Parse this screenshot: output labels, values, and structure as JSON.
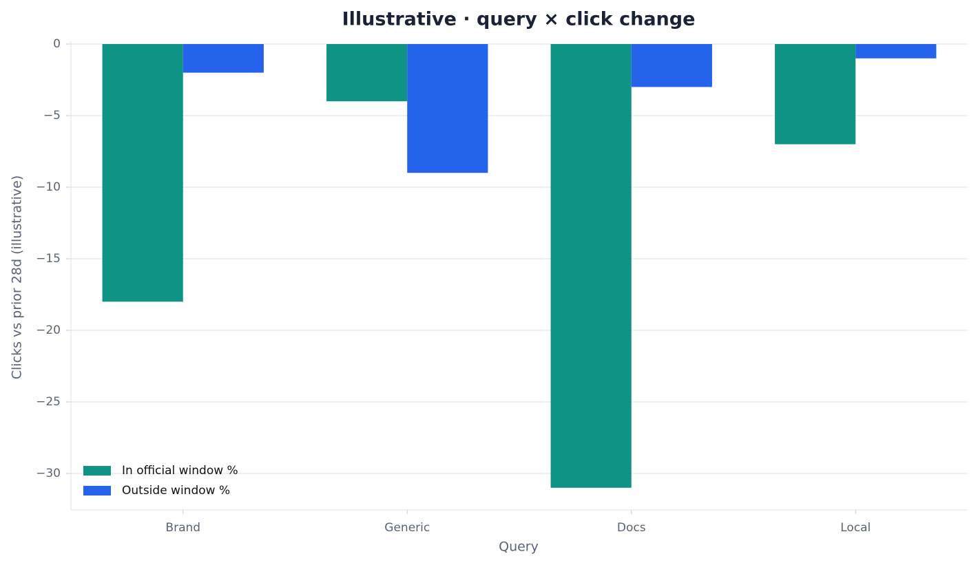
{
  "chart_data": {
    "type": "bar",
    "title": "Illustrative · query × click change",
    "x_label": "Query",
    "y_label": "Clicks vs prior 28d (illustrative)",
    "categories": [
      "Brand",
      "Generic",
      "Docs",
      "Local"
    ],
    "series": [
      {
        "name": "In official window %",
        "color": "#0e9384",
        "values": [
          -18,
          -4,
          -31,
          -7
        ]
      },
      {
        "name": "Outside window %",
        "color": "#2563eb",
        "values": [
          -2,
          -9,
          -3,
          -1
        ]
      }
    ],
    "ylim": [
      -32.55,
      0
    ],
    "yticks": [
      0,
      {
        "value": -5,
        "label": "−5"
      },
      {
        "value": -10,
        "label": "−10"
      },
      {
        "value": -15,
        "label": "−15"
      },
      {
        "value": -20,
        "label": "−20"
      },
      {
        "value": -25,
        "label": "−25"
      },
      {
        "value": -30,
        "label": "−30"
      }
    ],
    "grid": true,
    "legend": "lower left"
  }
}
